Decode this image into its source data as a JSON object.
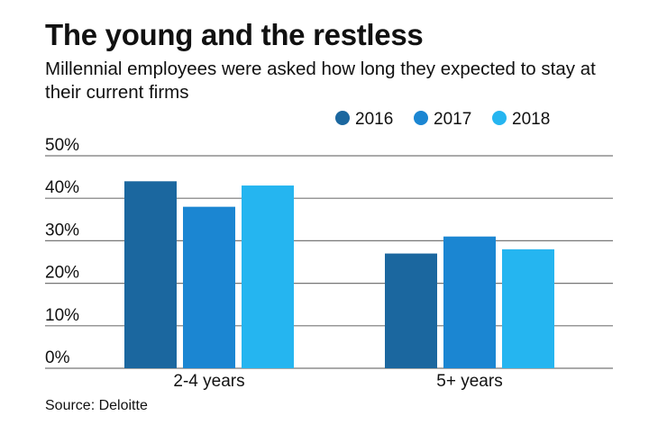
{
  "chart_data": {
    "type": "bar",
    "title": "The young and the restless",
    "subtitle": "Millennial employees were asked how long they expected to stay at their current firms",
    "source": "Source: Deloitte",
    "categories": [
      "2-4 years",
      "5+ years"
    ],
    "series": [
      {
        "name": "2016",
        "color": "#1b679f",
        "values": [
          44,
          27
        ]
      },
      {
        "name": "2017",
        "color": "#1b86d2",
        "values": [
          38,
          31
        ]
      },
      {
        "name": "2018",
        "color": "#25b5f0",
        "values": [
          43,
          28
        ]
      }
    ],
    "ylim": [
      0,
      50
    ],
    "yticks": [
      0,
      10,
      20,
      30,
      40,
      50
    ],
    "ytick_labels": [
      "0%",
      "10%",
      "20%",
      "30%",
      "40%",
      "50%"
    ],
    "grid": true,
    "legend_position": "top-right"
  }
}
